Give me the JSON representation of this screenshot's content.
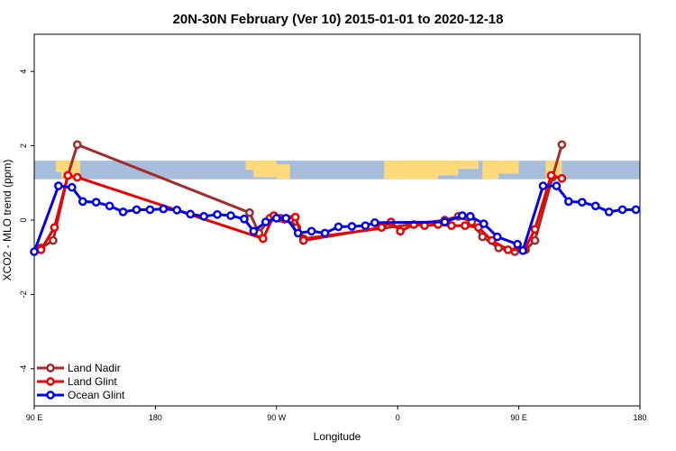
{
  "chart_data": {
    "type": "line",
    "title": "20N-30N February (Ver 10)   2015-01-01 to 2020-12-18",
    "xlabel": "Longitude",
    "ylabel": "XCO2 - MLO trend (ppm)",
    "xlim": [
      0,
      450
    ],
    "ylim": [
      -5,
      5
    ],
    "x_ticks": [
      {
        "value": 0,
        "label": "90 E"
      },
      {
        "value": 90,
        "label": "180"
      },
      {
        "value": 180,
        "label": "90 W"
      },
      {
        "value": 270,
        "label": "0"
      },
      {
        "value": 360,
        "label": "90 E"
      },
      {
        "value": 450,
        "label": "180"
      }
    ],
    "y_ticks": [
      {
        "value": -4,
        "label": "-4"
      },
      {
        "value": -2,
        "label": "-2"
      },
      {
        "value": 0,
        "label": "0"
      },
      {
        "value": 2,
        "label": "2"
      },
      {
        "value": 4,
        "label": "4"
      }
    ],
    "map_band": {
      "y_range": [
        1.1,
        1.6
      ],
      "ocean_color": "#a6bddb",
      "land_color": "#ffd97a"
    },
    "legend": {
      "position": "bottom-left"
    },
    "series": [
      {
        "name": "Land Nadir",
        "color": "#a52a2a",
        "points": [
          [
            5,
            -0.75
          ],
          [
            14,
            -0.55
          ],
          [
            25,
            1.2
          ],
          [
            32,
            2.03
          ],
          [
            160,
            0.2
          ],
          [
            167,
            -0.35
          ],
          [
            175,
            0.05
          ],
          [
            183,
            0.05
          ],
          [
            190,
            0.02
          ],
          [
            195,
            -0.2
          ],
          [
            200,
            -0.5
          ],
          [
            305,
            0.0
          ],
          [
            315,
            0.1
          ],
          [
            325,
            -0.05
          ],
          [
            333,
            -0.45
          ],
          [
            345,
            -0.75
          ],
          [
            357,
            -0.85
          ],
          [
            365,
            -0.8
          ],
          [
            372,
            -0.55
          ],
          [
            385,
            1.15
          ],
          [
            392,
            2.03
          ]
        ]
      },
      {
        "name": "Land Glint",
        "color": "#ee0000",
        "points": [
          [
            5,
            -0.8
          ],
          [
            15,
            -0.2
          ],
          [
            25,
            1.2
          ],
          [
            32,
            1.15
          ],
          [
            170,
            -0.5
          ],
          [
            178,
            0.12
          ],
          [
            186,
            0.02
          ],
          [
            194,
            0.08
          ],
          [
            200,
            -0.55
          ],
          [
            258,
            -0.2
          ],
          [
            265,
            -0.05
          ],
          [
            272,
            -0.3
          ],
          [
            282,
            -0.12
          ],
          [
            290,
            -0.15
          ],
          [
            300,
            -0.12
          ],
          [
            310,
            -0.15
          ],
          [
            320,
            -0.15
          ],
          [
            330,
            -0.2
          ],
          [
            340,
            -0.55
          ],
          [
            352,
            -0.8
          ],
          [
            364,
            -0.8
          ],
          [
            372,
            -0.25
          ],
          [
            384,
            1.2
          ],
          [
            392,
            1.12
          ]
        ]
      },
      {
        "name": "Ocean Glint",
        "color": "#0000ee",
        "points": [
          [
            0,
            -0.85
          ],
          [
            18,
            0.92
          ],
          [
            28,
            0.88
          ],
          [
            36,
            0.5
          ],
          [
            46,
            0.48
          ],
          [
            56,
            0.38
          ],
          [
            66,
            0.22
          ],
          [
            76,
            0.28
          ],
          [
            86,
            0.28
          ],
          [
            96,
            0.3
          ],
          [
            106,
            0.27
          ],
          [
            116,
            0.16
          ],
          [
            126,
            0.1
          ],
          [
            136,
            0.15
          ],
          [
            146,
            0.12
          ],
          [
            156,
            0.03
          ],
          [
            163,
            -0.3
          ],
          [
            172,
            -0.05
          ],
          [
            180,
            0.05
          ],
          [
            187,
            0.05
          ],
          [
            196,
            -0.35
          ],
          [
            206,
            -0.3
          ],
          [
            216,
            -0.35
          ],
          [
            226,
            -0.18
          ],
          [
            236,
            -0.17
          ],
          [
            246,
            -0.15
          ],
          [
            253,
            -0.07
          ],
          [
            305,
            -0.05
          ],
          [
            318,
            0.12
          ],
          [
            324,
            0.1
          ],
          [
            334,
            -0.1
          ],
          [
            344,
            -0.45
          ],
          [
            359,
            -0.65
          ],
          [
            363,
            -0.82
          ],
          [
            378,
            0.92
          ],
          [
            388,
            0.92
          ],
          [
            397,
            0.5
          ],
          [
            407,
            0.48
          ],
          [
            417,
            0.38
          ],
          [
            427,
            0.22
          ],
          [
            437,
            0.28
          ],
          [
            447,
            0.28
          ]
        ]
      }
    ]
  }
}
